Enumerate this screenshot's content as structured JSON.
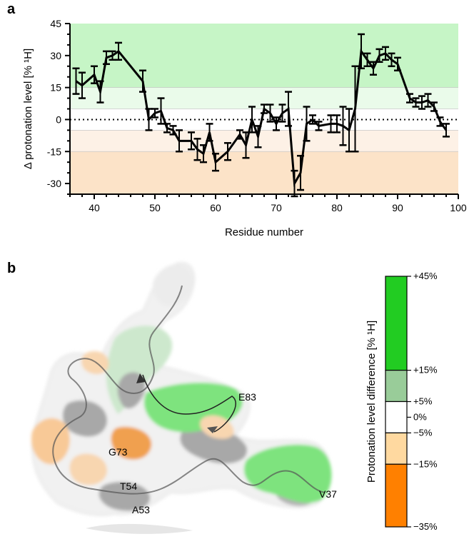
{
  "panel_a": {
    "letter": "a",
    "chart_data": {
      "type": "line",
      "xlabel": "Residue number",
      "ylabel": "Δ protonation level [% ¹H]",
      "xlim": [
        36,
        100
      ],
      "ylim": [
        -35,
        45
      ],
      "xticks": [
        40,
        50,
        60,
        70,
        80,
        90,
        100
      ],
      "yticks": [
        45,
        30,
        15,
        0,
        -15,
        -30
      ],
      "bands": [
        {
          "from": 15,
          "to": 45,
          "color": "#c6f5c6"
        },
        {
          "from": 5,
          "to": 15,
          "color": "#eafbea"
        },
        {
          "from": -15,
          "to": -5,
          "color": "#fdf1e6"
        },
        {
          "from": -35,
          "to": -15,
          "color": "#fce3c8"
        }
      ],
      "zero_line": "dotted",
      "series": [
        {
          "x": [
            37,
            38,
            40,
            41,
            42,
            43,
            44,
            48,
            49,
            50,
            51,
            52,
            53,
            54,
            56,
            57,
            58,
            59,
            60,
            62,
            64,
            65,
            66,
            67,
            68,
            69,
            70,
            71,
            72,
            73,
            74,
            75,
            76,
            77,
            79,
            80,
            81,
            82,
            83,
            84,
            85,
            86,
            87,
            88,
            89,
            90,
            92,
            93,
            94,
            95,
            96,
            97,
            98
          ],
          "y": [
            18,
            16,
            21,
            13,
            29,
            30,
            32,
            18,
            0,
            3,
            4,
            -4,
            -5,
            -10,
            -10,
            -14,
            -16,
            -6,
            -20,
            -15,
            -7,
            -12,
            0,
            -8,
            5,
            3,
            -2,
            3,
            5,
            -30,
            -25,
            -2,
            0,
            -3,
            -2,
            -2,
            -3,
            -5,
            5,
            32,
            28,
            24,
            30,
            31,
            28,
            26,
            10,
            8,
            8,
            9,
            6,
            -1,
            -5
          ],
          "err": [
            6,
            6,
            4,
            5,
            3,
            2,
            4,
            5,
            5,
            2,
            6,
            2,
            2,
            5,
            4,
            5,
            4,
            4,
            4,
            4,
            2,
            6,
            6,
            5,
            2,
            4,
            3,
            4,
            8,
            6,
            8,
            8,
            2,
            2,
            4,
            4,
            9,
            10,
            20,
            8,
            3,
            3,
            3,
            3,
            3,
            3,
            2,
            2,
            3,
            3,
            2,
            2,
            3
          ]
        }
      ]
    }
  },
  "panel_b": {
    "letter": "b",
    "residue_labels": [
      "E83",
      "G73",
      "T54",
      "A53",
      "V37"
    ],
    "colorbar": {
      "title": "Protonation level difference [% ¹H]",
      "labels": [
        "+45%",
        "+15%",
        "+5%",
        "0%",
        "−5%",
        "−15%",
        "−35%"
      ],
      "segments": [
        {
          "from": 15,
          "to": 45,
          "color": "#22cc22"
        },
        {
          "from": 5,
          "to": 15,
          "color": "#99cc99"
        },
        {
          "from": -5,
          "to": 5,
          "color": "#ffffff"
        },
        {
          "from": -15,
          "to": -5,
          "color": "#ffd9a0"
        },
        {
          "from": -35,
          "to": -15,
          "color": "#ff8000"
        }
      ],
      "range": [
        -35,
        45
      ]
    },
    "surface_colors": {
      "green": "#7ee37e",
      "light_green": "#cde8cd",
      "grey": "#a8a8a8",
      "orange": "#f2a55a",
      "light_orange": "#f8d2a8",
      "white": "#f4f4f4"
    }
  }
}
